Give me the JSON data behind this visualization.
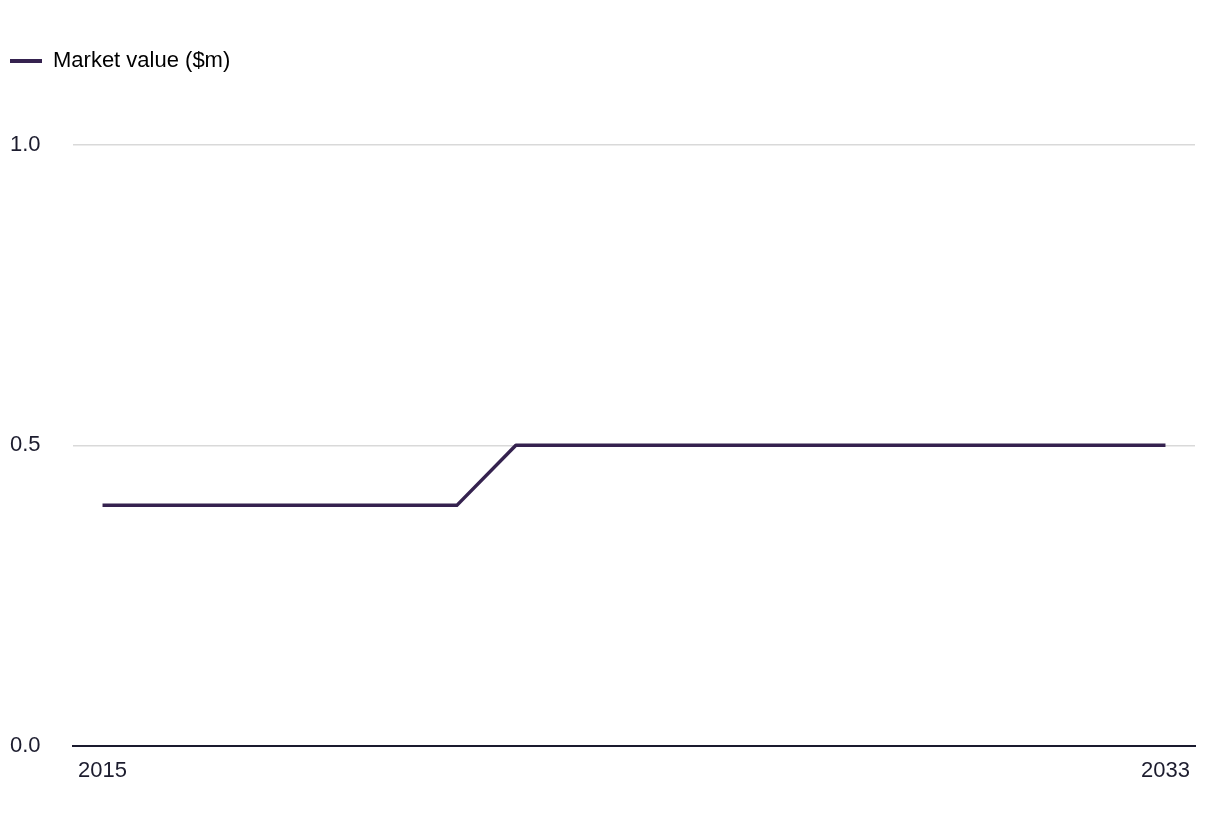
{
  "chart_data": {
    "type": "line",
    "categories": [
      "2015",
      null,
      null,
      null,
      null,
      null,
      null,
      null,
      null,
      null,
      null,
      null,
      null,
      null,
      null,
      null,
      null,
      null,
      "2033"
    ],
    "series": [
      {
        "name": "Market value ($m)",
        "color": "#35224f",
        "values": [
          0.4,
          0.4,
          0.4,
          0.4,
          0.4,
          0.4,
          0.4,
          0.5,
          0.5,
          0.5,
          0.5,
          0.5,
          0.5,
          0.5,
          0.5,
          0.5,
          0.5,
          0.5,
          0.5
        ]
      }
    ],
    "ylim": [
      0,
      1
    ],
    "yticks": [
      {
        "value": 0,
        "label": "0.0"
      },
      {
        "value": 0.5,
        "label": "0.5"
      },
      {
        "value": 1,
        "label": "1.0"
      }
    ],
    "grid": "y",
    "legend": "top left",
    "line_style": "solid"
  }
}
